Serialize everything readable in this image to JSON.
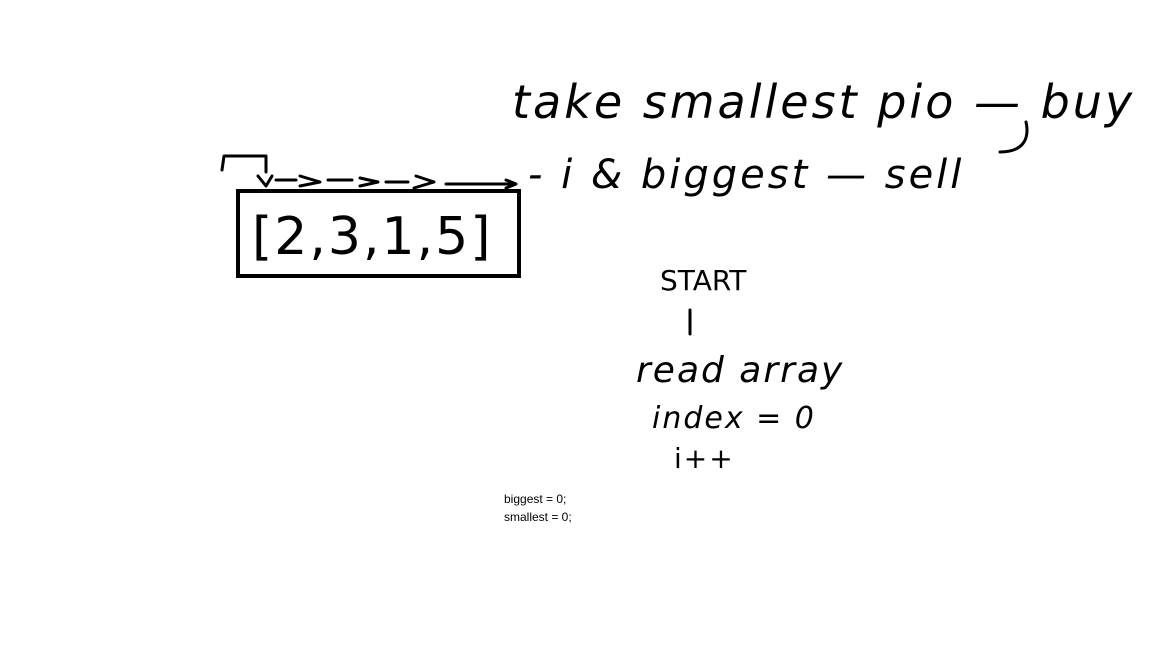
{
  "annotations": {
    "line1": "take smallest pio — buy",
    "line2": "- i  & biggest — sell"
  },
  "array": {
    "text": "[2,3,1,5]"
  },
  "flow": {
    "start": "START",
    "step1": "read array",
    "step2": "index = 0",
    "step3": "i++"
  },
  "notes": {
    "biggest": "biggest = 0;",
    "smallest": "smallest = 0;"
  },
  "colors": {
    "ink": "#000000",
    "background": "#ffffff"
  }
}
